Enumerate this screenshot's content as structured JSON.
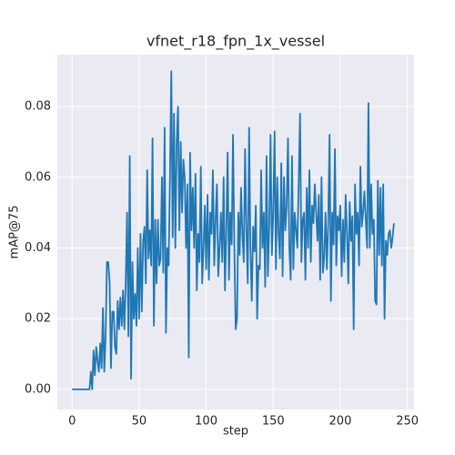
{
  "chart_data": {
    "type": "line",
    "title": "vfnet_r18_fpn_1x_vessel",
    "x_label": "step",
    "y_label": "mAP@75",
    "color": "#1f77b4",
    "grid": true,
    "xlim": [
      -11,
      255
    ],
    "ylim": [
      -0.0057,
      0.0947
    ],
    "xticks": [
      0,
      50,
      100,
      150,
      200,
      250
    ],
    "yticks": [
      {
        "value": 0,
        "label": "0.00"
      },
      {
        "value": 0.02,
        "label": "0.02"
      },
      {
        "value": 0.04,
        "label": "0.04"
      },
      {
        "value": 0.06,
        "label": "0.06"
      },
      {
        "value": 0.08,
        "label": "0.08"
      }
    ],
    "x": [
      0,
      1,
      2,
      3,
      4,
      5,
      6,
      7,
      8,
      9,
      10,
      11,
      12,
      13,
      14,
      15,
      16,
      17,
      18,
      19,
      20,
      21,
      22,
      23,
      24,
      25,
      26,
      27,
      28,
      29,
      30,
      31,
      32,
      33,
      34,
      35,
      36,
      37,
      38,
      39,
      40,
      41,
      42,
      43,
      44,
      45,
      46,
      47,
      48,
      49,
      50,
      51,
      52,
      53,
      54,
      55,
      56,
      57,
      58,
      59,
      60,
      61,
      62,
      63,
      64,
      65,
      66,
      67,
      68,
      69,
      70,
      71,
      72,
      73,
      74,
      75,
      76,
      77,
      78,
      79,
      80,
      81,
      82,
      83,
      84,
      85,
      86,
      87,
      88,
      89,
      90,
      91,
      92,
      93,
      94,
      95,
      96,
      97,
      98,
      99,
      100,
      101,
      102,
      103,
      104,
      105,
      106,
      107,
      108,
      109,
      110,
      111,
      112,
      113,
      114,
      115,
      116,
      117,
      118,
      119,
      120,
      121,
      122,
      123,
      124,
      125,
      126,
      127,
      128,
      129,
      130,
      131,
      132,
      133,
      134,
      135,
      136,
      137,
      138,
      139,
      140,
      141,
      142,
      143,
      144,
      145,
      146,
      147,
      148,
      149,
      150,
      151,
      152,
      153,
      154,
      155,
      156,
      157,
      158,
      159,
      160,
      161,
      162,
      163,
      164,
      165,
      166,
      167,
      168,
      169,
      170,
      171,
      172,
      173,
      174,
      175,
      176,
      177,
      178,
      179,
      180,
      181,
      182,
      183,
      184,
      185,
      186,
      187,
      188,
      189,
      190,
      191,
      192,
      193,
      194,
      195,
      196,
      197,
      198,
      199,
      200,
      201,
      202,
      203,
      204,
      205,
      206,
      207,
      208,
      209,
      210,
      211,
      212,
      213,
      214,
      215,
      216,
      217,
      218,
      219,
      220,
      221,
      222,
      223,
      224,
      225,
      226,
      227,
      228,
      229,
      230,
      231,
      232,
      233,
      234,
      235,
      236,
      237,
      238,
      239,
      240
    ],
    "values": [
      0,
      0,
      0,
      0,
      0,
      0,
      0,
      0,
      0,
      0,
      0,
      0,
      0,
      0,
      0.005,
      0,
      0.011,
      0.004,
      0.012,
      0.008,
      0.005,
      0.013,
      0.006,
      0.023,
      0.005,
      0.015,
      0.036,
      0.036,
      0.03,
      0.006,
      0.022,
      0.022,
      0.012,
      0.01,
      0.025,
      0.017,
      0.026,
      0.018,
      0.028,
      0.017,
      0.03,
      0.05,
      0.015,
      0.066,
      0.003,
      0.036,
      0.02,
      0.027,
      0.018,
      0.04,
      0.02,
      0.044,
      0.022,
      0.042,
      0.046,
      0.03,
      0.062,
      0.037,
      0.045,
      0.035,
      0.071,
      0.018,
      0.048,
      0.03,
      0.048,
      0.035,
      0.037,
      0.06,
      0.033,
      0.074,
      0.016,
      0.04,
      0.035,
      0.06,
      0.09,
      0.043,
      0.078,
      0.04,
      0.07,
      0.08,
      0.045,
      0.07,
      0.05,
      0.065,
      0.06,
      0.04,
      0.058,
      0.009,
      0.067,
      0.045,
      0.057,
      0.04,
      0.061,
      0.028,
      0.044,
      0.036,
      0.063,
      0.03,
      0.04,
      0.052,
      0.034,
      0.055,
      0.031,
      0.05,
      0.044,
      0.062,
      0.035,
      0.048,
      0.058,
      0.032,
      0.04,
      0.05,
      0.036,
      0.06,
      0.028,
      0.045,
      0.067,
      0.031,
      0.05,
      0.041,
      0.072,
      0.04,
      0.017,
      0.02,
      0.05,
      0.038,
      0.057,
      0.044,
      0.036,
      0.068,
      0.045,
      0.03,
      0.074,
      0.04,
      0.025,
      0.046,
      0.039,
      0.052,
      0.02,
      0.035,
      0.034,
      0.062,
      0.04,
      0.05,
      0.029,
      0.066,
      0.032,
      0.046,
      0.072,
      0.038,
      0.05,
      0.073,
      0.034,
      0.06,
      0.044,
      0.037,
      0.064,
      0.032,
      0.06,
      0.045,
      0.052,
      0.071,
      0.04,
      0.031,
      0.066,
      0.034,
      0.05,
      0.045,
      0.04,
      0.059,
      0.078,
      0.036,
      0.048,
      0.05,
      0.031,
      0.057,
      0.04,
      0.062,
      0.036,
      0.052,
      0.047,
      0.058,
      0.05,
      0.042,
      0.055,
      0.031,
      0.06,
      0.033,
      0.037,
      0.05,
      0.034,
      0.047,
      0.072,
      0.025,
      0.05,
      0.041,
      0.068,
      0.035,
      0.049,
      0.045,
      0.052,
      0.032,
      0.048,
      0.036,
      0.055,
      0.044,
      0.03,
      0.053,
      0.042,
      0.049,
      0.017,
      0.058,
      0.044,
      0.05,
      0.035,
      0.063,
      0.046,
      0.05,
      0.056,
      0.048,
      0.04,
      0.081,
      0.04,
      0.058,
      0.044,
      0.048,
      0.025,
      0.024,
      0.059,
      0.038,
      0.057,
      0.035,
      0.058,
      0.02,
      0.042,
      0.038,
      0.044,
      0.045,
      0.04,
      0.043,
      0.047
    ]
  }
}
